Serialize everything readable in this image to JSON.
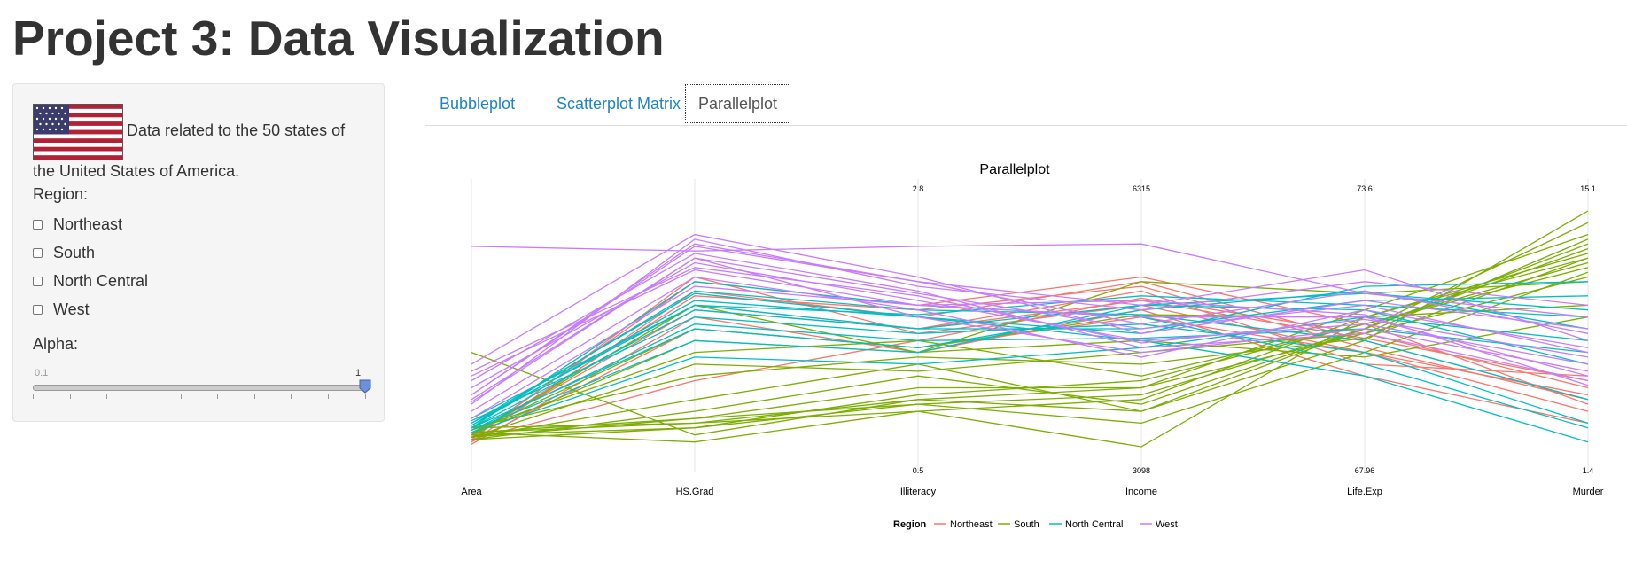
{
  "header": {
    "title": "Project 3: Data Visualization"
  },
  "sidebar": {
    "intro_line1": "Data related to the 50 states of",
    "intro_line2": "the United States of America.",
    "region_label": "Region:",
    "regions": [
      "Northeast",
      "South",
      "North Central",
      "West"
    ],
    "alpha_label": "Alpha:",
    "slider": {
      "min": "0.1",
      "max": "1",
      "value": 1
    }
  },
  "tabs": [
    {
      "label": "Bubbleplot",
      "active": false
    },
    {
      "label": "Scatterplot Matrix",
      "active": false
    },
    {
      "label": "Parallelplot",
      "active": true
    }
  ],
  "chart_data": {
    "type": "parallel",
    "title": "Parallelplot",
    "axes": [
      "Area",
      "HS.Grad",
      "Illiteracy",
      "Income",
      "Life.Exp",
      "Murder"
    ],
    "axis_top_labels": [
      "",
      "",
      "2.8",
      "6315",
      "73.6",
      "15.1"
    ],
    "axis_bottom_labels": [
      "",
      "",
      "0.5",
      "3098",
      "67.96",
      "1.4"
    ],
    "legend_title": "Region",
    "series": [
      {
        "name": "Northeast",
        "color": "#F8766D",
        "lines": [
          [
            0.03,
            0.28,
            0.45,
            0.63,
            0.48,
            0.25
          ],
          [
            0.02,
            0.66,
            0.55,
            0.7,
            0.45,
            0.2
          ],
          [
            0.01,
            0.55,
            0.4,
            0.58,
            0.3,
            0.1
          ],
          [
            0.05,
            0.6,
            0.5,
            0.66,
            0.35,
            0.3
          ],
          [
            0.04,
            0.7,
            0.6,
            0.72,
            0.52,
            0.18
          ],
          [
            0.02,
            0.5,
            0.42,
            0.55,
            0.4,
            0.15
          ],
          [
            0.03,
            0.72,
            0.48,
            0.6,
            0.4,
            0.22
          ],
          [
            0.04,
            0.64,
            0.58,
            0.68,
            0.42,
            0.2
          ],
          [
            0.05,
            0.58,
            0.5,
            0.62,
            0.46,
            0.28
          ]
        ]
      },
      {
        "name": "South",
        "color": "#7CAE00",
        "lines": [
          [
            0.4,
            0.05,
            0.2,
            0.15,
            0.5,
            0.95
          ],
          [
            0.08,
            0.1,
            0.15,
            0.2,
            0.55,
            0.8
          ],
          [
            0.06,
            0.12,
            0.25,
            0.25,
            0.48,
            0.88
          ],
          [
            0.05,
            0.08,
            0.18,
            0.1,
            0.4,
            0.74
          ],
          [
            0.04,
            0.2,
            0.35,
            0.15,
            0.45,
            1.0
          ],
          [
            0.03,
            0.15,
            0.3,
            0.18,
            0.5,
            0.86
          ],
          [
            0.07,
            0.4,
            0.45,
            0.3,
            0.52,
            0.78
          ],
          [
            0.06,
            0.02,
            0.15,
            0.0,
            0.55,
            0.6
          ],
          [
            0.05,
            0.45,
            0.4,
            0.7,
            0.65,
            0.7
          ],
          [
            0.08,
            0.3,
            0.38,
            0.35,
            0.46,
            0.8
          ],
          [
            0.04,
            0.12,
            0.18,
            0.22,
            0.5,
            0.84
          ],
          [
            0.05,
            0.6,
            0.4,
            0.45,
            0.38,
            0.55
          ],
          [
            0.06,
            0.1,
            0.2,
            0.25,
            0.58,
            0.9
          ],
          [
            0.03,
            0.08,
            0.22,
            0.28,
            0.52,
            0.76
          ],
          [
            0.04,
            0.35,
            0.32,
            0.4,
            0.48,
            0.72
          ],
          [
            0.06,
            0.5,
            0.42,
            0.56,
            0.55,
            0.82
          ]
        ]
      },
      {
        "name": "North Central",
        "color": "#00BFC4",
        "lines": [
          [
            0.1,
            0.65,
            0.55,
            0.45,
            0.3,
            0.02
          ],
          [
            0.08,
            0.7,
            0.6,
            0.55,
            0.35,
            0.08
          ],
          [
            0.12,
            0.6,
            0.5,
            0.5,
            0.62,
            0.64
          ],
          [
            0.07,
            0.45,
            0.4,
            0.6,
            0.65,
            0.58
          ],
          [
            0.09,
            0.62,
            0.55,
            0.48,
            0.68,
            0.7
          ],
          [
            0.11,
            0.55,
            0.48,
            0.52,
            0.4,
            0.1
          ],
          [
            0.06,
            0.38,
            0.35,
            0.42,
            0.55,
            0.45
          ],
          [
            0.08,
            0.5,
            0.42,
            0.58,
            0.66,
            0.5
          ],
          [
            0.1,
            0.6,
            0.56,
            0.64,
            0.6,
            0.55
          ],
          [
            0.07,
            0.52,
            0.45,
            0.46,
            0.5,
            0.4
          ],
          [
            0.09,
            0.66,
            0.58,
            0.56,
            0.45,
            0.2
          ],
          [
            0.08,
            0.58,
            0.5,
            0.6,
            0.58,
            0.35
          ]
        ]
      },
      {
        "name": "West",
        "color": "#C77CFF",
        "lines": [
          [
            0.85,
            0.83,
            0.85,
            0.86,
            0.65,
            0.55
          ],
          [
            0.22,
            0.85,
            0.7,
            0.6,
            0.75,
            0.45
          ],
          [
            0.2,
            0.8,
            0.65,
            0.5,
            0.6,
            0.4
          ],
          [
            0.3,
            0.75,
            0.6,
            0.55,
            0.55,
            0.3
          ],
          [
            0.35,
            0.9,
            0.72,
            0.48,
            0.62,
            0.5
          ],
          [
            0.18,
            0.88,
            0.68,
            0.58,
            0.7,
            0.6
          ],
          [
            0.25,
            0.78,
            0.62,
            0.45,
            0.52,
            0.35
          ],
          [
            0.28,
            0.82,
            0.66,
            0.42,
            0.48,
            0.28
          ],
          [
            0.15,
            0.72,
            0.58,
            0.38,
            0.58,
            0.42
          ],
          [
            0.22,
            0.86,
            0.7,
            0.52,
            0.66,
            0.48
          ],
          [
            0.32,
            0.76,
            0.64,
            0.44,
            0.54,
            0.38
          ],
          [
            0.19,
            0.8,
            0.55,
            0.4,
            0.5,
            0.32
          ],
          [
            0.12,
            0.68,
            0.6,
            0.62,
            0.56,
            0.26
          ]
        ]
      }
    ]
  }
}
